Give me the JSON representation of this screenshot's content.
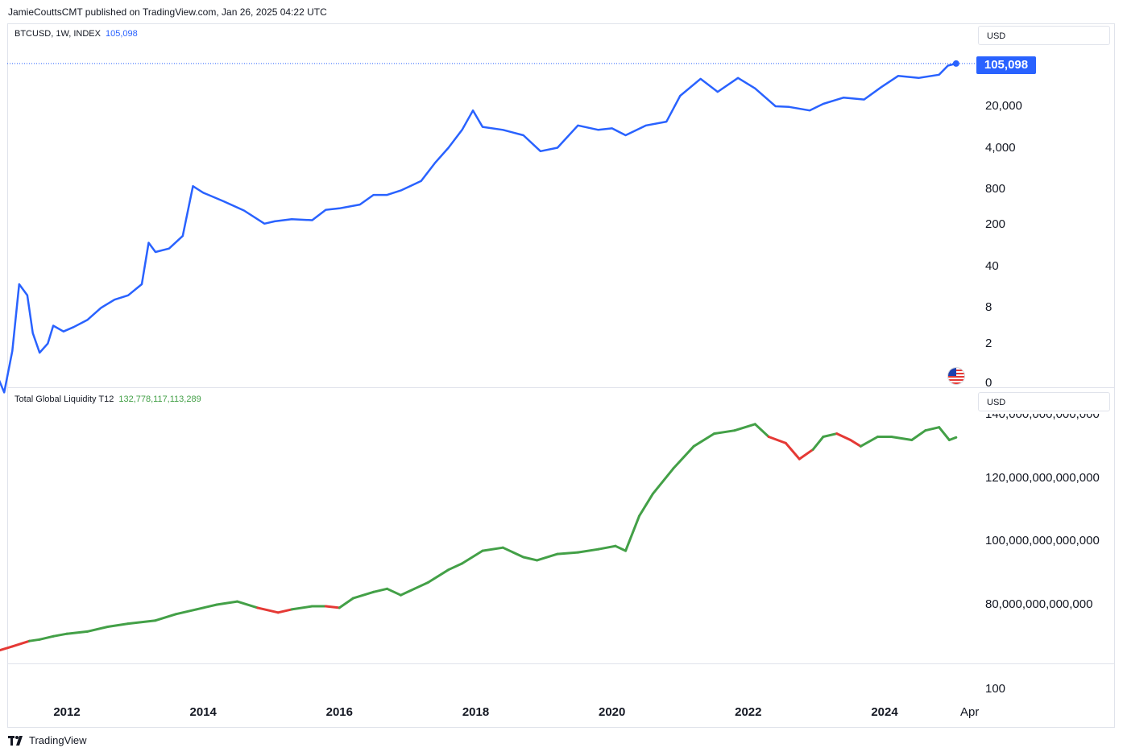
{
  "header": {
    "publisher_line": "JamieCouttsCMT published on TradingView.com, Jan 26, 2025 04:22 UTC"
  },
  "footer": {
    "brand": "TradingView",
    "logo_icon": "tradingview-logo-icon"
  },
  "colors": {
    "btc_line": "#2962ff",
    "liquidity_up": "#43a047",
    "liquidity_down": "#e53935",
    "badge": "#2962ff"
  },
  "chart_data": [
    {
      "type": "line",
      "symbol": "BTCUSD, 1W, INDEX",
      "last_value": "105,098",
      "currency_button": "USD",
      "scale": "log",
      "y_tick_labels": [
        "20,000",
        "4,000",
        "800",
        "200",
        "40",
        "8",
        "2",
        "0"
      ],
      "y_ticks": [
        20000,
        4000,
        800,
        200,
        40,
        8,
        2
      ],
      "x": [
        2011.0,
        2011.08,
        2011.2,
        2011.3,
        2011.42,
        2011.5,
        2011.6,
        2011.72,
        2011.8,
        2011.95,
        2012.1,
        2012.3,
        2012.5,
        2012.7,
        2012.9,
        2013.1,
        2013.2,
        2013.3,
        2013.5,
        2013.7,
        2013.85,
        2013.92,
        2014.0,
        2014.3,
        2014.6,
        2014.9,
        2015.05,
        2015.3,
        2015.6,
        2015.8,
        2016.0,
        2016.3,
        2016.5,
        2016.7,
        2016.9,
        2017.2,
        2017.4,
        2017.6,
        2017.8,
        2017.96,
        2018.1,
        2018.4,
        2018.7,
        2018.95,
        2019.2,
        2019.5,
        2019.8,
        2020.0,
        2020.2,
        2020.5,
        2020.8,
        2021.0,
        2021.3,
        2021.55,
        2021.85,
        2022.1,
        2022.4,
        2022.6,
        2022.9,
        2023.1,
        2023.4,
        2023.7,
        2023.95,
        2024.2,
        2024.5,
        2024.8,
        2024.93,
        2025.05
      ],
      "y": [
        0.5,
        0.3,
        1.5,
        20,
        13,
        3,
        1.4,
        2,
        4,
        3.2,
        3.8,
        5,
        8,
        11,
        13,
        20,
        100,
        70,
        80,
        130,
        900,
        800,
        700,
        500,
        350,
        210,
        230,
        250,
        240,
        360,
        380,
        440,
        640,
        640,
        760,
        1100,
        2200,
        4000,
        8000,
        17000,
        9000,
        8000,
        6500,
        3500,
        4000,
        9500,
        8000,
        8500,
        6500,
        9500,
        11000,
        30000,
        58000,
        35000,
        60000,
        40000,
        20000,
        19500,
        17000,
        22000,
        28000,
        26000,
        42000,
        65000,
        60000,
        68000,
        97000,
        105098
      ]
    },
    {
      "type": "line",
      "name": "Total Global Liquidity T12",
      "last_value": "132,778,117,113,289",
      "currency_button": "USD",
      "y_tick_labels": [
        "140,000,000,000,000",
        "120,000,000,000,000",
        "100,000,000,000,000",
        "80,000,000,000,000"
      ],
      "y_ticks": [
        140,
        120,
        100,
        80
      ],
      "unit": "trillion USD",
      "x": [
        2011.0,
        2011.2,
        2011.45,
        2011.6,
        2011.8,
        2012.0,
        2012.3,
        2012.6,
        2012.9,
        2013.3,
        2013.6,
        2013.9,
        2014.2,
        2014.5,
        2014.8,
        2015.1,
        2015.3,
        2015.6,
        2015.8,
        2016.0,
        2016.2,
        2016.5,
        2016.7,
        2016.9,
        2017.1,
        2017.3,
        2017.6,
        2017.8,
        2018.1,
        2018.4,
        2018.7,
        2018.9,
        2019.2,
        2019.5,
        2019.8,
        2020.05,
        2020.2,
        2020.4,
        2020.6,
        2020.9,
        2021.2,
        2021.5,
        2021.8,
        2022.1,
        2022.3,
        2022.55,
        2022.75,
        2022.95,
        2023.1,
        2023.3,
        2023.5,
        2023.65,
        2023.9,
        2024.1,
        2024.4,
        2024.6,
        2024.8,
        2024.95,
        2025.05
      ],
      "y": [
        65.5,
        66.8,
        68.5,
        69,
        70,
        70.8,
        71.5,
        73,
        74,
        75,
        77,
        78.5,
        80,
        81,
        79,
        77.5,
        78.5,
        79.5,
        79.5,
        79,
        82,
        84,
        85,
        83,
        85,
        87,
        91,
        93,
        97,
        98,
        95,
        94,
        96,
        96.5,
        97.5,
        98.5,
        97,
        108,
        115,
        123,
        130,
        134,
        135,
        137,
        133,
        131,
        126,
        129,
        133,
        134,
        132,
        130,
        133,
        133,
        132,
        135,
        136,
        132,
        132.8
      ],
      "direction": [
        "down",
        "down",
        "down",
        "up",
        "up",
        "up",
        "up",
        "up",
        "up",
        "up",
        "up",
        "up",
        "up",
        "up",
        "up",
        "down",
        "down",
        "up",
        "up",
        "down",
        "up",
        "up",
        "up",
        "up",
        "up",
        "up",
        "up",
        "up",
        "up",
        "up",
        "up",
        "up",
        "up",
        "up",
        "up",
        "up",
        "up",
        "up",
        "up",
        "up",
        "up",
        "up",
        "up",
        "up",
        "up",
        "down",
        "down",
        "down",
        "up",
        "up",
        "down",
        "down",
        "up",
        "up",
        "up",
        "up",
        "up",
        "up",
        "up"
      ]
    },
    {
      "type": "line",
      "pane": "empty",
      "y_tick_labels": [
        "100"
      ],
      "x_tick_labels": [
        "2012",
        "2014",
        "2016",
        "2018",
        "2020",
        "2022",
        "2024",
        "Apr"
      ],
      "x_ticks": [
        2012,
        2014,
        2016,
        2018,
        2020,
        2022,
        2024,
        2025.25
      ]
    }
  ]
}
